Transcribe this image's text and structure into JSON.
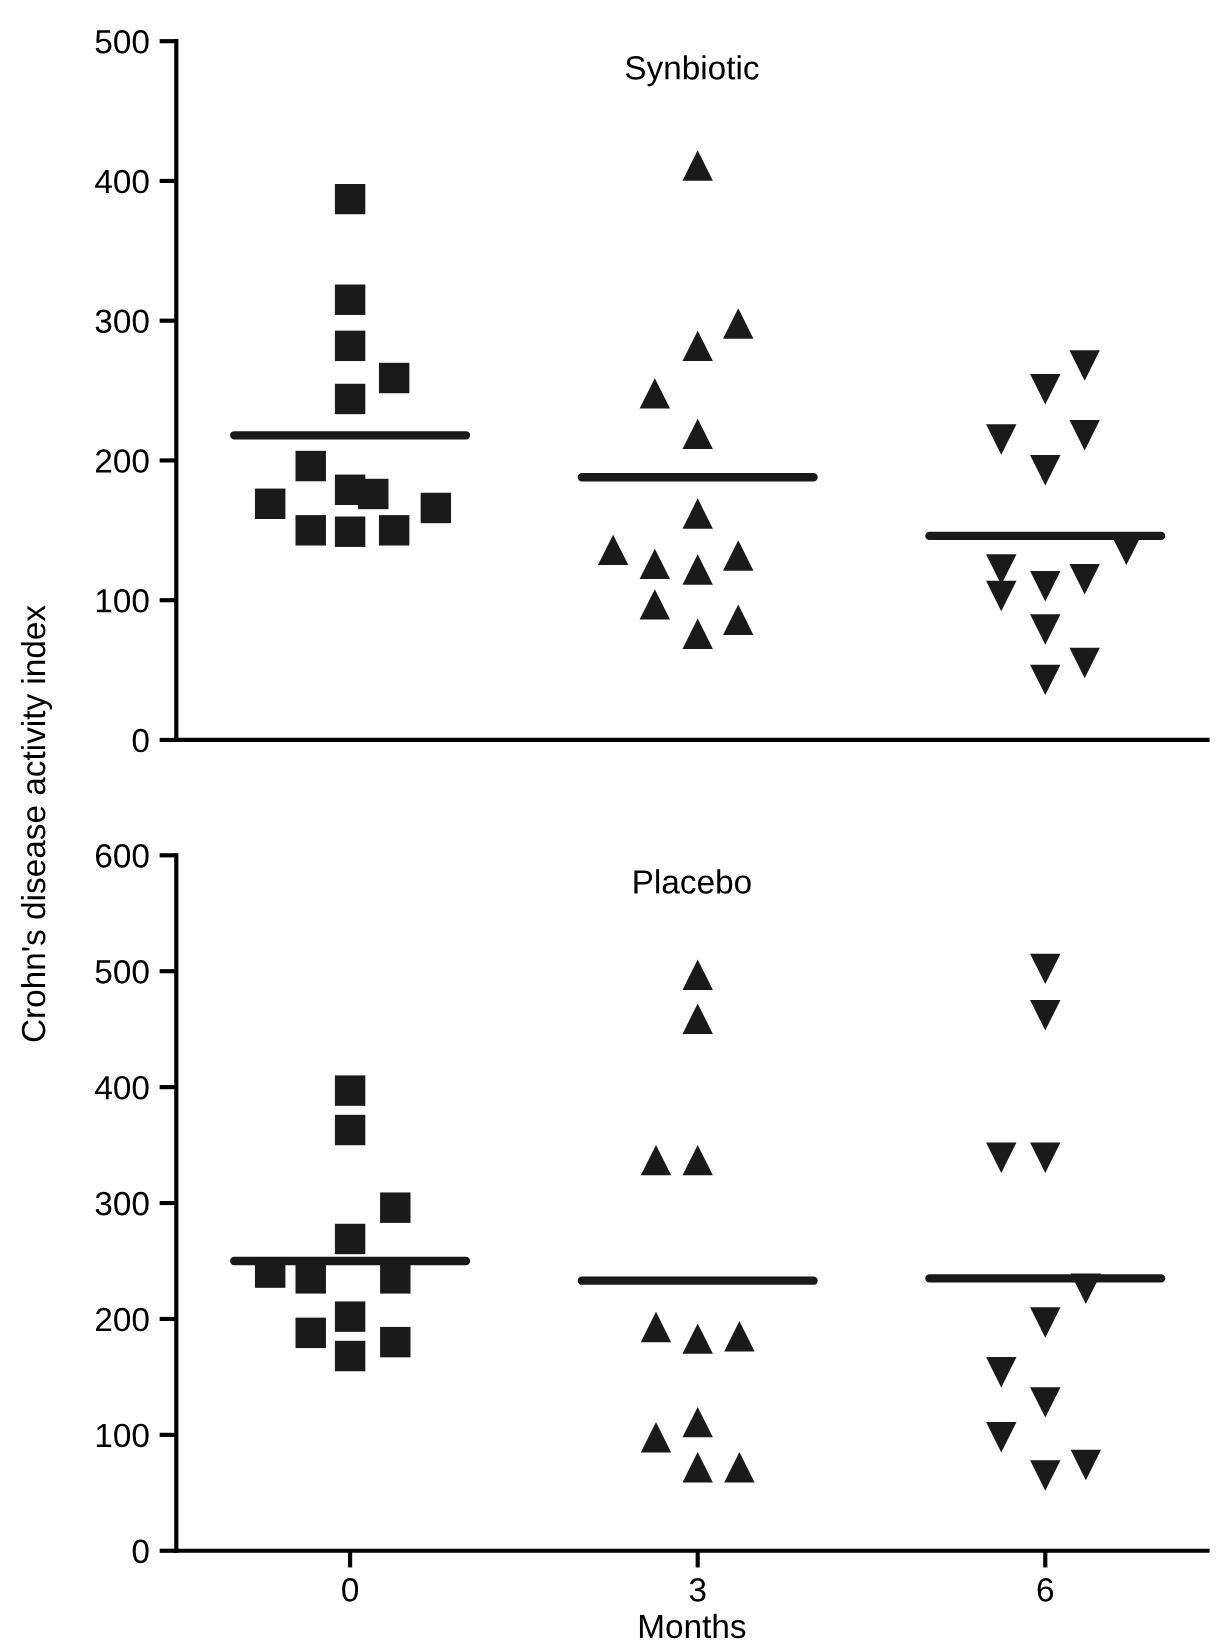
{
  "chart_data": [
    {
      "type": "scatter",
      "title": "Synbiotic",
      "xlim": [
        -1.5,
        7.4
      ],
      "ylim": [
        0,
        500
      ],
      "yticks": [
        0,
        100,
        200,
        300,
        400,
        500
      ],
      "tick_labels": "y",
      "grid": false,
      "legend": false,
      "series": [
        {
          "color": "#1a1a1a",
          "marker": "square",
          "x": [
            0,
            0,
            0,
            0.38,
            0,
            -0.34,
            -0.69,
            0,
            0.2,
            0.74,
            -0.34,
            0,
            0.38
          ],
          "values": [
            387,
            315,
            282,
            259,
            244,
            196,
            169,
            179,
            176,
            166,
            150,
            149,
            150
          ]
        },
        {
          "color": "#1a1a1a",
          "marker": "triangle",
          "x": [
            3,
            3.35,
            3,
            2.63,
            3,
            3,
            2.27,
            2.63,
            3,
            3.35,
            2.63,
            3,
            3.35
          ],
          "values": [
            411,
            298,
            282,
            248,
            219,
            162,
            136,
            126,
            122,
            132,
            97,
            76,
            86
          ]
        },
        {
          "color": "#1a1a1a",
          "marker": "triangle_down",
          "x": [
            6.34,
            6,
            5.62,
            6.34,
            6,
            6.7,
            5.62,
            5.62,
            6,
            6.34,
            6,
            6,
            6.34
          ],
          "values": [
            268,
            251,
            215,
            218,
            193,
            136,
            122,
            103,
            110,
            115,
            79,
            43,
            55
          ]
        },
        {
          "type": "line",
          "color": "#1a1a1a",
          "marker": "none",
          "x": [
            -1,
            1,
            null,
            2,
            4,
            null,
            5,
            7
          ],
          "values": [
            218,
            218,
            null,
            188,
            188,
            null,
            146,
            146
          ]
        }
      ]
    },
    {
      "type": "scatter",
      "title": "Placebo",
      "xlabel": "Months",
      "ylabel": "Crohn's disease activity index",
      "xlim": [
        -1.5,
        7.4
      ],
      "xticks": [
        0,
        3,
        6
      ],
      "ylim": [
        0,
        600
      ],
      "yticks": [
        0,
        100,
        200,
        300,
        400,
        500,
        600
      ],
      "grid": false,
      "legend": false,
      "series": [
        {
          "color": "#1a1a1a",
          "marker": "square",
          "x": [
            0,
            0,
            0.39,
            0,
            -0.69,
            -0.34,
            0.39,
            0,
            -0.34,
            0,
            0.39
          ],
          "values": [
            397,
            363,
            296,
            269,
            240,
            235,
            235,
            202,
            188,
            168,
            180
          ]
        },
        {
          "color": "#1a1a1a",
          "marker": "triangle",
          "x": [
            3,
            3,
            2.64,
            3,
            2.64,
            3,
            3.36,
            2.64,
            3,
            3,
            3.36
          ],
          "values": [
            497,
            459,
            337,
            337,
            193,
            183,
            185,
            98,
            111,
            72,
            72
          ]
        },
        {
          "color": "#1a1a1a",
          "marker": "triangle_down",
          "x": [
            6,
            6,
            5.62,
            6,
            6.35,
            6,
            5.62,
            6,
            5.62,
            6,
            6.35
          ],
          "values": [
            502,
            462,
            339,
            339,
            226,
            197,
            154,
            128,
            98,
            65,
            74
          ]
        },
        {
          "type": "line",
          "color": "#1a1a1a",
          "marker": "none",
          "x": [
            -1,
            1,
            null,
            2,
            4,
            null,
            5,
            7
          ],
          "values": [
            250,
            250,
            null,
            233,
            233,
            null,
            235,
            235
          ]
        }
      ]
    }
  ]
}
